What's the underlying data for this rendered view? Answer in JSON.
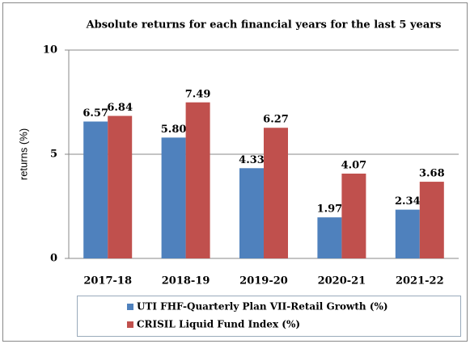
{
  "chart_data": {
    "type": "bar",
    "title": "Absolute returns for each financial years for the last 5 years",
    "y_label": "returns (%)",
    "categories": [
      "2017-18",
      "2018-19",
      "2019-20",
      "2020-21",
      "2021-22"
    ],
    "series": [
      {
        "name": "UTI FHF-Quarterly Plan VII-Retail Growth (%)",
        "color": "#4f81bd",
        "values": [
          6.57,
          5.8,
          4.33,
          1.97,
          2.34
        ],
        "value_labels": [
          "6.57",
          "5.80",
          "4.33",
          "1.97",
          "2.34"
        ]
      },
      {
        "name": "CRISIL Liquid Fund Index (%)",
        "color": "#c0504d",
        "values": [
          6.84,
          7.49,
          6.27,
          4.07,
          3.68
        ],
        "value_labels": [
          "6.84",
          "7.49",
          "6.27",
          "4.07",
          "3.68"
        ]
      }
    ],
    "ylim": [
      0,
      10
    ],
    "yticks": [
      0,
      5,
      10
    ],
    "grid": true
  }
}
